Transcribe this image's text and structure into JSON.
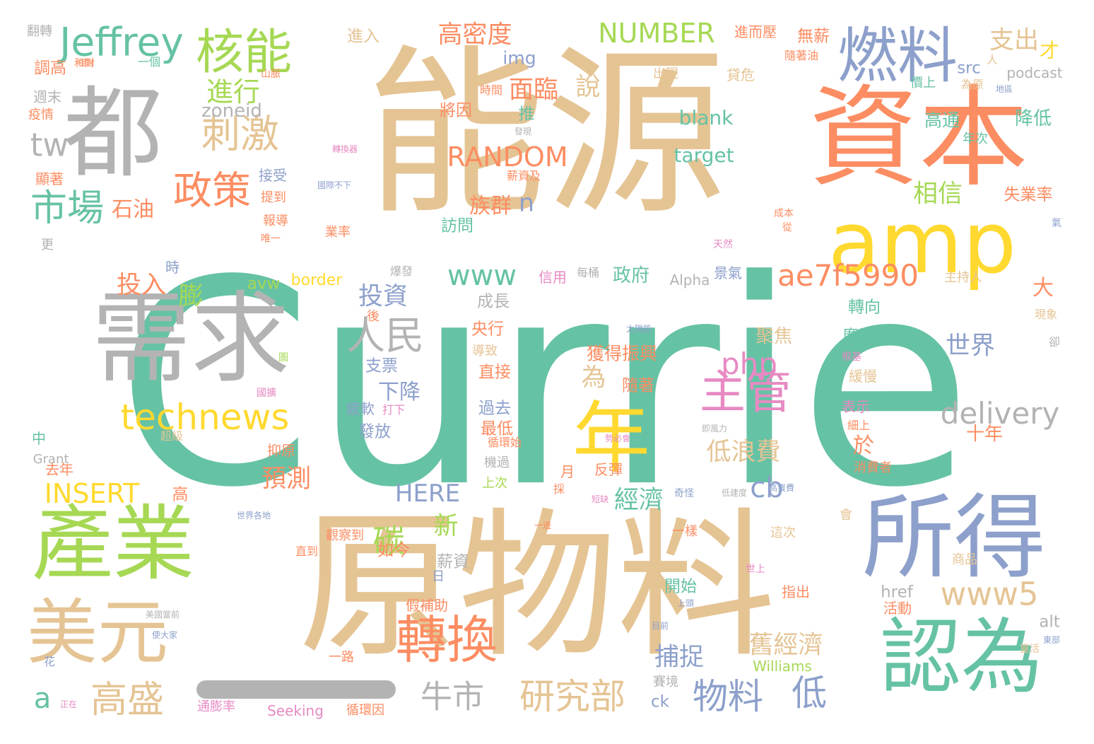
{
  "palette": {
    "teal": "#66c2a5",
    "tan": "#e5c494",
    "orange": "#fc8d62",
    "blue": "#8da0cb",
    "pink": "#e78ac3",
    "green": "#a6d854",
    "yellow": "#ffd92f",
    "gray": "#b3b3b3"
  },
  "words": [
    {
      "text": "Currie",
      "color": "teal"
    },
    {
      "text": "能源",
      "color": "tan"
    },
    {
      "text": "原物料",
      "color": "tan"
    },
    {
      "text": "資本",
      "color": "orange"
    },
    {
      "text": "需求",
      "color": "gray"
    },
    {
      "text": "都",
      "color": "gray"
    },
    {
      "text": "amp",
      "color": "yellow"
    },
    {
      "text": "所得",
      "color": "blue"
    },
    {
      "text": "認為",
      "color": "teal"
    },
    {
      "text": "產業",
      "color": "green"
    },
    {
      "text": "美元",
      "color": "tan"
    },
    {
      "text": "年",
      "color": "yellow"
    },
    {
      "text": "燃料",
      "color": "blue"
    },
    {
      "text": "核能",
      "color": "green"
    },
    {
      "text": "Jeffrey",
      "color": "teal"
    },
    {
      "text": "轉換",
      "color": "orange"
    },
    {
      "text": "主管",
      "color": "pink"
    },
    {
      "text": "人民",
      "color": "gray"
    },
    {
      "text": "刺激",
      "color": "tan"
    },
    {
      "text": "政策",
      "color": "orange"
    },
    {
      "text": "市場",
      "color": "teal"
    },
    {
      "text": "technews",
      "color": "yellow"
    },
    {
      "text": "ae7f5990",
      "color": "orange"
    },
    {
      "text": "www5",
      "color": "tan"
    },
    {
      "text": "delivery",
      "color": "gray"
    },
    {
      "text": "php",
      "color": "pink"
    },
    {
      "text": "研究部",
      "color": "tan"
    },
    {
      "text": "牛市",
      "color": "gray"
    },
    {
      "text": "高盛",
      "color": "tan"
    },
    {
      "text": "物料",
      "color": "blue"
    },
    {
      "text": "低",
      "color": "blue"
    },
    {
      "text": "碳",
      "color": "green"
    },
    {
      "text": "tw",
      "color": "gray"
    },
    {
      "text": "www",
      "color": "teal"
    },
    {
      "text": "RANDOM",
      "color": "orange"
    },
    {
      "text": "NUMBER",
      "color": "green"
    },
    {
      "text": "INSERT",
      "color": "yellow"
    },
    {
      "text": "HERE",
      "color": "blue"
    },
    {
      "text": "高密度",
      "color": "orange"
    },
    {
      "text": "支出",
      "color": "tan"
    },
    {
      "text": "進行",
      "color": "green"
    },
    {
      "text": "面臨",
      "color": "orange"
    },
    {
      "text": "膨",
      "color": "green"
    },
    {
      "text": "投資",
      "color": "blue"
    },
    {
      "text": "石油",
      "color": "orange"
    },
    {
      "text": "cb",
      "color": "blue"
    },
    {
      "text": "a",
      "color": "teal"
    },
    {
      "text": "n",
      "color": "blue"
    },
    {
      "text": "zoneid",
      "color": "gray"
    },
    {
      "text": "blank",
      "color": "teal"
    },
    {
      "text": "target",
      "color": "teal"
    },
    {
      "text": "img",
      "color": "blue"
    },
    {
      "text": "說",
      "color": "tan"
    },
    {
      "text": "低浪費",
      "color": "tan"
    },
    {
      "text": "舊經濟",
      "color": "tan"
    },
    {
      "text": "相信",
      "color": "green"
    },
    {
      "text": "世界",
      "color": "blue"
    },
    {
      "text": "捕捉",
      "color": "blue"
    },
    {
      "text": "預測",
      "color": "orange"
    },
    {
      "text": "投入",
      "color": "orange"
    },
    {
      "text": "新",
      "color": "green"
    },
    {
      "text": "經濟",
      "color": "teal"
    },
    {
      "text": "下降",
      "color": "blue"
    },
    {
      "text": "為",
      "color": "tan"
    },
    {
      "text": "於",
      "color": "orange"
    },
    {
      "text": "大",
      "color": "orange"
    },
    {
      "text": "十年",
      "color": "orange"
    },
    {
      "text": "高通",
      "color": "teal"
    },
    {
      "text": "降低",
      "color": "teal"
    },
    {
      "text": "失業率",
      "color": "orange"
    },
    {
      "text": "族群",
      "color": "orange"
    },
    {
      "text": "政府",
      "color": "teal"
    },
    {
      "text": "聚焦",
      "color": "tan"
    },
    {
      "text": "廣泛",
      "color": "teal"
    },
    {
      "text": "獲得振興",
      "color": "orange"
    },
    {
      "text": "隨著",
      "color": "orange"
    },
    {
      "text": "直接",
      "color": "orange"
    },
    {
      "text": "過去",
      "color": "blue"
    },
    {
      "text": "發放",
      "color": "blue"
    },
    {
      "text": "支票",
      "color": "blue"
    },
    {
      "text": "央行",
      "color": "orange"
    },
    {
      "text": "成長",
      "color": "gray"
    },
    {
      "text": "最低",
      "color": "orange"
    },
    {
      "text": "假補助",
      "color": "orange"
    },
    {
      "text": "開始",
      "color": "teal"
    },
    {
      "text": "如今",
      "color": "orange"
    },
    {
      "text": "薪資",
      "color": "gray"
    },
    {
      "text": "轉向",
      "color": "teal"
    },
    {
      "text": "border",
      "color": "yellow"
    },
    {
      "text": "avw",
      "color": "green"
    },
    {
      "text": "Alpha",
      "color": "gray"
    },
    {
      "text": "src",
      "color": "blue"
    },
    {
      "text": "href",
      "color": "gray"
    },
    {
      "text": "alt",
      "color": "gray"
    },
    {
      "text": "ck",
      "color": "blue"
    },
    {
      "text": "Williams",
      "color": "green"
    },
    {
      "text": "Seeking",
      "color": "pink"
    },
    {
      "text": "Grant",
      "color": "gray"
    },
    {
      "text": "podcast",
      "color": "gray"
    },
    {
      "text": "才",
      "color": "yellow"
    },
    {
      "text": "推",
      "color": "teal"
    },
    {
      "text": "將因",
      "color": "orange"
    },
    {
      "text": "進入",
      "color": "tan"
    },
    {
      "text": "無薪",
      "color": "orange"
    },
    {
      "text": "進而壓",
      "color": "orange"
    },
    {
      "text": "接受",
      "color": "blue"
    },
    {
      "text": "提到",
      "color": "orange"
    },
    {
      "text": "報導",
      "color": "orange"
    },
    {
      "text": "業率",
      "color": "orange"
    },
    {
      "text": "訪問",
      "color": "teal"
    },
    {
      "text": "景氣",
      "color": "blue"
    },
    {
      "text": "信用",
      "color": "pink"
    },
    {
      "text": "主持人",
      "color": "tan"
    },
    {
      "text": "時",
      "color": "blue"
    },
    {
      "text": "後",
      "color": "orange"
    },
    {
      "text": "循環始",
      "color": "orange"
    },
    {
      "text": "機過",
      "color": "gray"
    },
    {
      "text": "上次",
      "color": "green"
    },
    {
      "text": "反彈",
      "color": "orange"
    },
    {
      "text": "月",
      "color": "orange"
    },
    {
      "text": "一樣",
      "color": "orange"
    },
    {
      "text": "這次",
      "color": "tan"
    },
    {
      "text": "消費者",
      "color": "orange"
    },
    {
      "text": "會",
      "color": "tan"
    },
    {
      "text": "緩慢",
      "color": "tan"
    },
    {
      "text": "表示",
      "color": "pink"
    },
    {
      "text": "指出",
      "color": "orange"
    },
    {
      "text": "活動",
      "color": "orange"
    },
    {
      "text": "商品",
      "color": "tan"
    },
    {
      "text": "疲軟",
      "color": "blue"
    },
    {
      "text": "打下",
      "color": "pink"
    },
    {
      "text": "日",
      "color": "blue"
    },
    {
      "text": "觀察到",
      "color": "orange"
    },
    {
      "text": "直到",
      "color": "orange"
    },
    {
      "text": "一路",
      "color": "orange"
    },
    {
      "text": "賽境",
      "color": "gray"
    },
    {
      "text": "循環因",
      "color": "orange"
    },
    {
      "text": "通膨率",
      "color": "pink"
    },
    {
      "text": "抑原",
      "color": "orange"
    },
    {
      "text": "超級",
      "color": "tan"
    },
    {
      "text": "去年",
      "color": "orange"
    },
    {
      "text": "中",
      "color": "teal"
    },
    {
      "text": "高",
      "color": "orange"
    },
    {
      "text": "更",
      "color": "gray"
    },
    {
      "text": "顯著",
      "color": "orange"
    },
    {
      "text": "疫情",
      "color": "orange"
    },
    {
      "text": "週末",
      "color": "gray"
    },
    {
      "text": "調高",
      "color": "orange"
    },
    {
      "text": "翻轉",
      "color": "gray"
    },
    {
      "text": "一個",
      "color": "teal"
    },
    {
      "text": "出現",
      "color": "tan"
    },
    {
      "text": "貸危",
      "color": "tan"
    },
    {
      "text": "時間",
      "color": "orange"
    },
    {
      "text": "價上",
      "color": "teal"
    },
    {
      "text": "為原",
      "color": "tan"
    },
    {
      "text": "年次",
      "color": "teal"
    },
    {
      "text": "隨著油",
      "color": "orange"
    },
    {
      "text": "爆發",
      "color": "gray"
    },
    {
      "text": "每桶",
      "color": "gray"
    },
    {
      "text": "現象",
      "color": "tan"
    },
    {
      "text": "卻",
      "color": "gray"
    },
    {
      "text": "人",
      "color": "tan"
    },
    {
      "text": "氣",
      "color": "blue"
    },
    {
      "text": "花",
      "color": "blue"
    },
    {
      "text": "唯一",
      "color": "orange"
    },
    {
      "text": "天然",
      "color": "pink"
    },
    {
      "text": "成本",
      "color": "orange"
    },
    {
      "text": "從",
      "color": "orange"
    },
    {
      "text": "發現",
      "color": "gray"
    },
    {
      "text": "轉換器",
      "color": "pink"
    },
    {
      "text": "薪資及",
      "color": "orange"
    },
    {
      "text": "地區",
      "color": "blue"
    },
    {
      "text": "和對",
      "color": "orange"
    },
    {
      "text": "山脈",
      "color": "orange"
    },
    {
      "text": "國際不下",
      "color": "blue"
    },
    {
      "text": "太陽能",
      "color": "blue"
    },
    {
      "text": "根基",
      "color": "pink"
    },
    {
      "text": "圖",
      "color": "green"
    },
    {
      "text": "國擴",
      "color": "pink"
    },
    {
      "text": "正在",
      "color": "pink"
    },
    {
      "text": "世界各地",
      "color": "blue"
    },
    {
      "text": "美國當前",
      "color": "gray"
    },
    {
      "text": "使大家",
      "color": "blue"
    },
    {
      "text": "目前",
      "color": "blue"
    },
    {
      "text": "上頭",
      "color": "blue"
    },
    {
      "text": "世上",
      "color": "pink"
    },
    {
      "text": "靈活",
      "color": "tan"
    },
    {
      "text": "東部",
      "color": "blue"
    },
    {
      "text": "即風力",
      "color": "gray"
    },
    {
      "text": "低建度",
      "color": "gray"
    },
    {
      "text": "高資費",
      "color": "blue"
    },
    {
      "text": "奇怪",
      "color": "blue"
    },
    {
      "text": "採",
      "color": "orange"
    },
    {
      "text": "短缺",
      "color": "pink"
    },
    {
      "text": "一邊",
      "color": "orange"
    },
    {
      "text": "導致",
      "color": "tan"
    },
    {
      "text": "勢必會",
      "color": "pink"
    },
    {
      "text": "細上",
      "color": "orange"
    },
    {
      "text": "相對",
      "color": "orange"
    }
  ]
}
